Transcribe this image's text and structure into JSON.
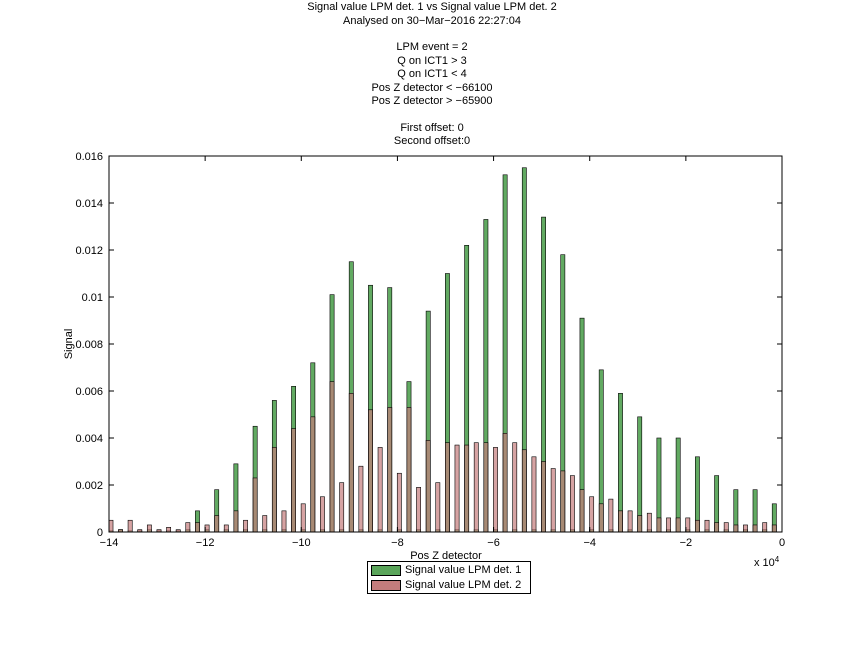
{
  "chart_data": {
    "type": "bar",
    "title_lines": [
      "Signal value LPM det. 1 vs Signal value LPM det. 2",
      "Analysed on 30−Mar−2016 22:27:04",
      "",
      "LPM event = 2",
      "Q on ICT1 > 3",
      "Q on ICT1 < 4",
      "Pos Z detector < −66100",
      "Pos Z detector > −65900",
      "",
      "First offset: 0",
      "Second offset:0"
    ],
    "xlabel": "Pos Z detector",
    "ylabel": "Signal",
    "x_exponent_label": "x 10",
    "x_exponent_power": "4",
    "xlim": [
      -140000,
      0
    ],
    "ylim": [
      0,
      0.016
    ],
    "x_ticks": [
      -140000,
      -120000,
      -100000,
      -80000,
      -60000,
      -40000,
      -20000,
      0
    ],
    "x_tick_labels": [
      "−14",
      "−12",
      "−10",
      "−8",
      "−6",
      "−4",
      "−2",
      "0"
    ],
    "y_ticks": [
      0,
      0.002,
      0.004,
      0.006,
      0.008,
      0.01,
      0.012,
      0.014,
      0.016
    ],
    "y_tick_labels": [
      "0",
      "0.002",
      "0.004",
      "0.006",
      "0.008",
      "0.01",
      "0.012",
      "0.014",
      "0.016"
    ],
    "grid": false,
    "legend_position": "below-plot",
    "x": [
      -139600,
      -137600,
      -135600,
      -133600,
      -131600,
      -129600,
      -127600,
      -125600,
      -123600,
      -121600,
      -119600,
      -117600,
      -115600,
      -113600,
      -111600,
      -109600,
      -107600,
      -105600,
      -103600,
      -101600,
      -99600,
      -97600,
      -95600,
      -93600,
      -91600,
      -89600,
      -87600,
      -85600,
      -83600,
      -81600,
      -79600,
      -77600,
      -75600,
      -73600,
      -71600,
      -69600,
      -67600,
      -65600,
      -63600,
      -61600,
      -59600,
      -57600,
      -55600,
      -53600,
      -51600,
      -49600,
      -47600,
      -45600,
      -43600,
      -41600,
      -39600,
      -37600,
      -35600,
      -33600,
      -31600,
      -29600,
      -27600,
      -25600,
      -23600,
      -21600,
      -19600,
      -17600,
      -15600,
      -13600,
      -11600,
      -9600,
      -7600,
      -5600,
      -3600,
      -1600
    ],
    "series": [
      {
        "name": "Signal value LPM det. 1",
        "color": "#5aa55a",
        "values": [
          5e-05,
          0.0001,
          5e-05,
          5e-05,
          0.0001,
          5e-05,
          5e-05,
          5e-05,
          0.0001,
          0.0009,
          0.0001,
          0.0018,
          0.0001,
          0.0029,
          0.0001,
          0.0045,
          0.0001,
          0.0056,
          0.0001,
          0.0062,
          0.0001,
          0.0072,
          0.0001,
          0.0101,
          0.0001,
          0.0115,
          0.0001,
          0.0105,
          0.0001,
          0.0104,
          0.0001,
          0.0064,
          0.0001,
          0.0094,
          0.0001,
          0.011,
          0.0001,
          0.0122,
          0.0001,
          0.0133,
          0.0001,
          0.0152,
          0.0001,
          0.0155,
          0.0001,
          0.0134,
          0.0001,
          0.0118,
          0.0001,
          0.0091,
          0.0001,
          0.0069,
          0.0001,
          0.0059,
          0.0001,
          0.0049,
          0.0001,
          0.004,
          0.0001,
          0.004,
          0.0001,
          0.0032,
          0.0001,
          0.0024,
          0.0001,
          0.0018,
          0.0001,
          0.0018,
          0.0001,
          0.0012
        ]
      },
      {
        "name": "Signal value LPM det. 2",
        "color": "#c47c7c",
        "values": [
          0.0005,
          0.0001,
          0.0005,
          0.0001,
          0.0003,
          0.0001,
          0.0002,
          0.0001,
          0.0004,
          0.0004,
          0.0003,
          0.0007,
          0.0003,
          0.0009,
          0.0005,
          0.0023,
          0.0007,
          0.0036,
          0.0009,
          0.0044,
          0.0012,
          0.0049,
          0.0015,
          0.0064,
          0.0021,
          0.0059,
          0.0028,
          0.0052,
          0.0036,
          0.0053,
          0.0025,
          0.0053,
          0.0019,
          0.0039,
          0.0021,
          0.0038,
          0.0037,
          0.0037,
          0.0038,
          0.0038,
          0.0036,
          0.0042,
          0.0038,
          0.0035,
          0.0032,
          0.003,
          0.0027,
          0.0026,
          0.0024,
          0.0018,
          0.0015,
          0.0012,
          0.0014,
          0.0009,
          0.0009,
          0.0007,
          0.0008,
          0.0006,
          0.0006,
          0.0006,
          0.0006,
          0.0005,
          0.0005,
          0.0004,
          0.0004,
          0.0003,
          0.0003,
          0.0003,
          0.0004,
          0.0003
        ]
      }
    ]
  }
}
